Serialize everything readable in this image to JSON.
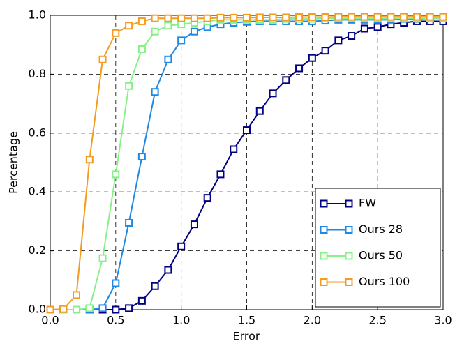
{
  "chart_data": {
    "type": "line",
    "x_label": "Error",
    "y_label": "Percentage",
    "x": [
      0,
      0.1,
      0.2,
      0.3,
      0.4,
      0.5,
      0.6,
      0.7,
      0.8,
      0.9,
      1.0,
      1.1,
      1.2,
      1.3,
      1.4,
      1.5,
      1.6,
      1.7,
      1.8,
      1.9,
      2.0,
      2.1,
      2.2,
      2.3,
      2.4,
      2.5,
      2.6,
      2.7,
      2.8,
      2.9,
      3.0
    ],
    "series": [
      {
        "name": "FW",
        "color": "#000080",
        "values": [
          0,
          0,
          0,
          0,
          0,
          0,
          0.005,
          0.03,
          0.08,
          0.135,
          0.215,
          0.29,
          0.38,
          0.46,
          0.545,
          0.61,
          0.675,
          0.735,
          0.78,
          0.82,
          0.855,
          0.88,
          0.915,
          0.93,
          0.955,
          0.96,
          0.97,
          0.975,
          0.98,
          0.98,
          0.98
        ]
      },
      {
        "name": "Ours 28",
        "color": "#1e88e5",
        "values": [
          0,
          0,
          0,
          0,
          0.005,
          0.09,
          0.295,
          0.52,
          0.74,
          0.85,
          0.915,
          0.945,
          0.96,
          0.97,
          0.975,
          0.978,
          0.98,
          0.98,
          0.98,
          0.98,
          0.98,
          0.982,
          0.985,
          0.985,
          0.985,
          0.985,
          0.985,
          0.988,
          0.988,
          0.99,
          0.99
        ]
      },
      {
        "name": "Ours 50",
        "color": "#88f088",
        "values": [
          0,
          0,
          0,
          0.005,
          0.175,
          0.46,
          0.76,
          0.885,
          0.945,
          0.965,
          0.97,
          0.975,
          0.98,
          0.985,
          0.985,
          0.985,
          0.985,
          0.985,
          0.988,
          0.988,
          0.988,
          0.99,
          0.99,
          0.99,
          0.99,
          0.99,
          0.99,
          0.99,
          0.99,
          0.99,
          0.99
        ]
      },
      {
        "name": "Ours 100",
        "color": "#f39c1f",
        "values": [
          0,
          0.002,
          0.05,
          0.51,
          0.85,
          0.94,
          0.965,
          0.98,
          0.99,
          0.99,
          0.99,
          0.99,
          0.99,
          0.992,
          0.992,
          0.992,
          0.993,
          0.993,
          0.993,
          0.994,
          0.994,
          0.994,
          0.995,
          0.995,
          0.995,
          0.995,
          0.995,
          0.995,
          0.995,
          0.995,
          0.995
        ]
      }
    ],
    "xlim": [
      0,
      3
    ],
    "ylim": [
      0,
      1
    ],
    "xticks": [
      {
        "value": 0,
        "label": "0.0"
      },
      0.5,
      {
        "value": 1,
        "label": "1.0"
      },
      1.5,
      {
        "value": 2,
        "label": "2.0"
      },
      2.5,
      {
        "value": 3,
        "label": "3.0"
      }
    ],
    "yticks": [
      {
        "value": 0,
        "label": "0.0"
      },
      0.2,
      0.4,
      0.6,
      0.8,
      {
        "value": 1,
        "label": "1.0"
      }
    ],
    "grid": true,
    "legend": "lower right"
  }
}
